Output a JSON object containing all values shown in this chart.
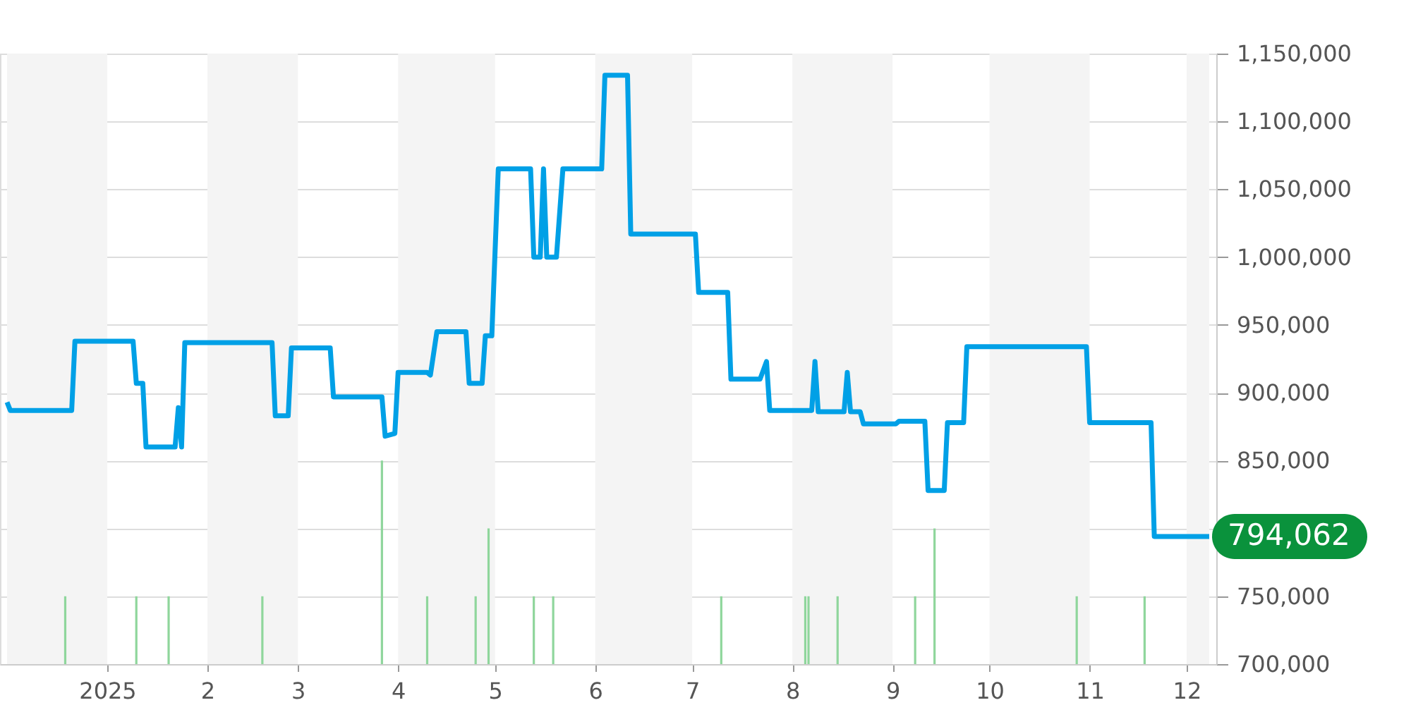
{
  "chart_data": {
    "type": "line",
    "xlim": [
      "2024-12-01",
      "2025-12-08"
    ],
    "xticks": [
      {
        "value": "2025-01-01",
        "label": "2025"
      },
      {
        "value": "2025-02-01",
        "label": "2"
      },
      {
        "value": "2025-03-01",
        "label": "3"
      },
      {
        "value": "2025-04-01",
        "label": "4"
      },
      {
        "value": "2025-05-01",
        "label": "5"
      },
      {
        "value": "2025-06-01",
        "label": "6"
      },
      {
        "value": "2025-07-01",
        "label": "7"
      },
      {
        "value": "2025-08-01",
        "label": "8"
      },
      {
        "value": "2025-09-01",
        "label": "9"
      },
      {
        "value": "2025-10-01",
        "label": "10"
      },
      {
        "value": "2025-11-01",
        "label": "11"
      },
      {
        "value": "2025-12-01",
        "label": "12"
      }
    ],
    "ylim": [
      700000,
      1150000
    ],
    "yticks": [
      {
        "value": 700000,
        "label": "700,000"
      },
      {
        "value": 750000,
        "label": "750,000"
      },
      {
        "value": 800000,
        "label": null
      },
      {
        "value": 850000,
        "label": "850,000"
      },
      {
        "value": 900000,
        "label": "900,000"
      },
      {
        "value": 950000,
        "label": "950,000"
      },
      {
        "value": 1000000,
        "label": "1,000,000"
      },
      {
        "value": 1050000,
        "label": "1,050,000"
      },
      {
        "value": 1100000,
        "label": "1,100,000"
      },
      {
        "value": 1150000,
        "label": "1,150,000"
      }
    ],
    "grid": "y",
    "line_style": "solid",
    "marker": "none",
    "bands": [
      {
        "axis": "x",
        "from": "2024-12-01",
        "to": "2025-01-01",
        "color": "#f4f4f4"
      },
      {
        "axis": "x",
        "from": "2025-02-01",
        "to": "2025-03-01",
        "color": "#f4f4f4"
      },
      {
        "axis": "x",
        "from": "2025-04-01",
        "to": "2025-05-01",
        "color": "#f4f4f4"
      },
      {
        "axis": "x",
        "from": "2025-06-01",
        "to": "2025-07-01",
        "color": "#f4f4f4"
      },
      {
        "axis": "x",
        "from": "2025-08-01",
        "to": "2025-09-01",
        "color": "#f4f4f4"
      },
      {
        "axis": "x",
        "from": "2025-10-01",
        "to": "2025-11-01",
        "color": "#f4f4f4"
      },
      {
        "axis": "x",
        "from": "2025-12-01",
        "to": "2025-12-08",
        "color": "#f4f4f4"
      }
    ],
    "series": [
      {
        "type": "bar",
        "color": "#8fd69c",
        "x": [
          "2024-12-19",
          "2025-01-10",
          "2025-01-20",
          "2025-02-18",
          "2025-03-27",
          "2025-04-10",
          "2025-04-25",
          "2025-04-29",
          "2025-05-13",
          "2025-05-19",
          "2025-07-10",
          "2025-08-05",
          "2025-08-06",
          "2025-08-15",
          "2025-09-08",
          "2025-09-14",
          "2025-10-28",
          "2025-11-18"
        ],
        "values": [
          750000,
          750000,
          750000,
          750000,
          850000,
          750000,
          750000,
          800000,
          750000,
          750000,
          750000,
          750000,
          750000,
          750000,
          750000,
          800000,
          750000,
          750000
        ]
      },
      {
        "color": "#00a0e6",
        "x": [
          "2024-12-01",
          "2024-12-02",
          "2024-12-21",
          "2024-12-22",
          "2025-01-09",
          "2025-01-10",
          "2025-01-12",
          "2025-01-13",
          "2025-01-22",
          "2025-01-23",
          "2025-01-24",
          "2025-01-25",
          "2025-02-21",
          "2025-02-22",
          "2025-02-26",
          "2025-02-27",
          "2025-03-11",
          "2025-03-12",
          "2025-03-27",
          "2025-03-28",
          "2025-03-31",
          "2025-04-01",
          "2025-04-10",
          "2025-04-11",
          "2025-04-13",
          "2025-04-22",
          "2025-04-23",
          "2025-04-27",
          "2025-04-28",
          "2025-04-30",
          "2025-05-02",
          "2025-05-12",
          "2025-05-13",
          "2025-05-15",
          "2025-05-16",
          "2025-05-17",
          "2025-05-20",
          "2025-05-22",
          "2025-06-03",
          "2025-06-04",
          "2025-06-11",
          "2025-06-12",
          "2025-07-02",
          "2025-07-03",
          "2025-07-12",
          "2025-07-13",
          "2025-07-22",
          "2025-07-24",
          "2025-07-25",
          "2025-08-07",
          "2025-08-08",
          "2025-08-09",
          "2025-08-17",
          "2025-08-18",
          "2025-08-19",
          "2025-08-22",
          "2025-08-23",
          "2025-09-02",
          "2025-09-03",
          "2025-09-11",
          "2025-09-12",
          "2025-09-17",
          "2025-09-18",
          "2025-09-23",
          "2025-09-24",
          "2025-10-31",
          "2025-11-01",
          "2025-11-20",
          "2025-11-21",
          "2025-12-08"
        ],
        "values": [
          893000,
          887000,
          887000,
          938000,
          938000,
          907000,
          907000,
          860000,
          860000,
          889000,
          860000,
          937000,
          937000,
          883000,
          883000,
          933000,
          933000,
          897000,
          897000,
          868000,
          870000,
          915000,
          915000,
          913000,
          945000,
          945000,
          907000,
          907000,
          942000,
          942000,
          1065000,
          1065000,
          1000000,
          1000000,
          1065000,
          1000000,
          1000000,
          1065000,
          1065000,
          1134000,
          1134000,
          1017000,
          1017000,
          974000,
          974000,
          910000,
          910000,
          923000,
          887000,
          887000,
          923000,
          886000,
          886000,
          915000,
          886000,
          886000,
          877000,
          877000,
          879000,
          879000,
          828000,
          828000,
          878000,
          878000,
          934000,
          934000,
          878000,
          878000,
          794062,
          794062
        ]
      }
    ],
    "annotations": [
      {
        "text": "794,062",
        "x": "2025-12-08",
        "y": 794062
      }
    ]
  }
}
